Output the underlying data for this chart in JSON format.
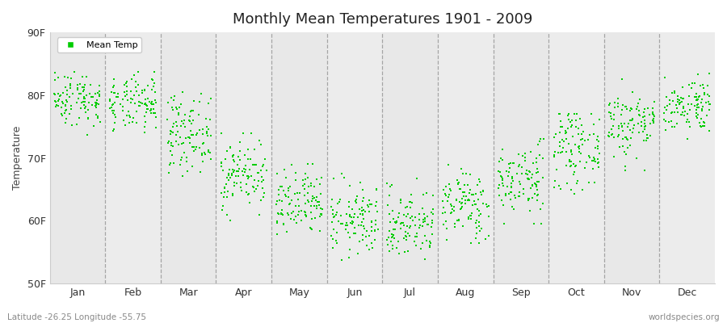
{
  "title": "Monthly Mean Temperatures 1901 - 2009",
  "ylabel": "Temperature",
  "xlabel_bottom_left": "Latitude -26.25 Longitude -55.75",
  "xlabel_bottom_right": "worldspecies.org",
  "ylim": [
    50,
    90
  ],
  "yticks": [
    50,
    60,
    70,
    80,
    90
  ],
  "ytick_labels": [
    "50F",
    "60F",
    "70F",
    "80F",
    "90F"
  ],
  "months": [
    "Jan",
    "Feb",
    "Mar",
    "Apr",
    "May",
    "Jun",
    "Jul",
    "Aug",
    "Sep",
    "Oct",
    "Nov",
    "Dec"
  ],
  "n_years": 109,
  "dot_color": "#00CC00",
  "dot_size": 3,
  "background_color": "#ffffff",
  "plot_bg_color": "#f0f0f0",
  "legend_label": "Mean Temp",
  "monthly_means": [
    79.5,
    78.5,
    74.0,
    67.5,
    62.5,
    60.0,
    59.5,
    62.5,
    66.5,
    71.5,
    75.5,
    78.5
  ],
  "monthly_stds": [
    2.2,
    2.2,
    3.0,
    2.8,
    2.8,
    2.8,
    2.8,
    2.8,
    3.0,
    3.0,
    2.8,
    2.2
  ],
  "monthly_mins": [
    73.5,
    72.5,
    64.5,
    58.5,
    56.5,
    52.5,
    52.5,
    56.5,
    59.5,
    63.5,
    68.0,
    73.0
  ],
  "monthly_maxs": [
    85.0,
    84.0,
    80.5,
    74.0,
    69.0,
    67.5,
    67.5,
    69.0,
    73.0,
    77.0,
    82.5,
    83.5
  ],
  "seed": 42,
  "dashed_line_color": "#888888",
  "stripe_colors": [
    "#e8e8e8",
    "#ececec"
  ]
}
